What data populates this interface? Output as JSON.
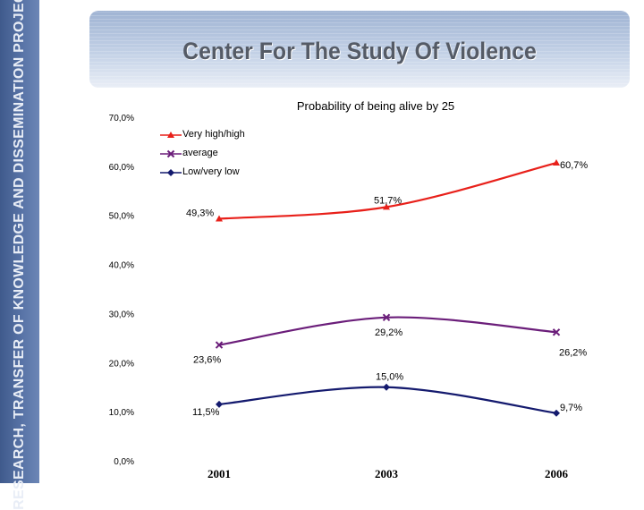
{
  "sidebar": {
    "text": "RESEARCH, TRANSFER OF  KNOWLEDGE AND DISSEMINATION  PROJECTS"
  },
  "header": {
    "title": "Center For The Study Of Violence"
  },
  "chart_data": {
    "type": "line",
    "title": "Probability of being alive by 25",
    "xlabel": "",
    "ylabel": "",
    "categories": [
      "2001",
      "2003",
      "2006"
    ],
    "ylim": [
      0,
      70
    ],
    "yticks": [
      0,
      10,
      20,
      30,
      40,
      50,
      60,
      70
    ],
    "ytick_labels": [
      "0,0%",
      "10,0%",
      "20,0%",
      "30,0%",
      "40,0%",
      "50,0%",
      "60,0%",
      "70,0%"
    ],
    "legend_position": "top-left",
    "grid": false,
    "series": [
      {
        "name": "Very high/high",
        "color": "#e8201a",
        "marker": "triangle",
        "values": [
          49.3,
          51.7,
          60.7
        ],
        "labels": [
          "49,3%",
          "51,7%",
          "60,7%"
        ]
      },
      {
        "name": "average",
        "color": "#6b1e7a",
        "marker": "x",
        "values": [
          23.6,
          29.2,
          26.2
        ],
        "labels": [
          "23,6%",
          "29,2%",
          "26,2%"
        ]
      },
      {
        "name": "Low/very low",
        "color": "#141a6e",
        "marker": "diamond",
        "values": [
          11.5,
          15.0,
          9.7
        ],
        "labels": [
          "11,5%",
          "15,0%",
          "9,7%"
        ]
      }
    ]
  }
}
